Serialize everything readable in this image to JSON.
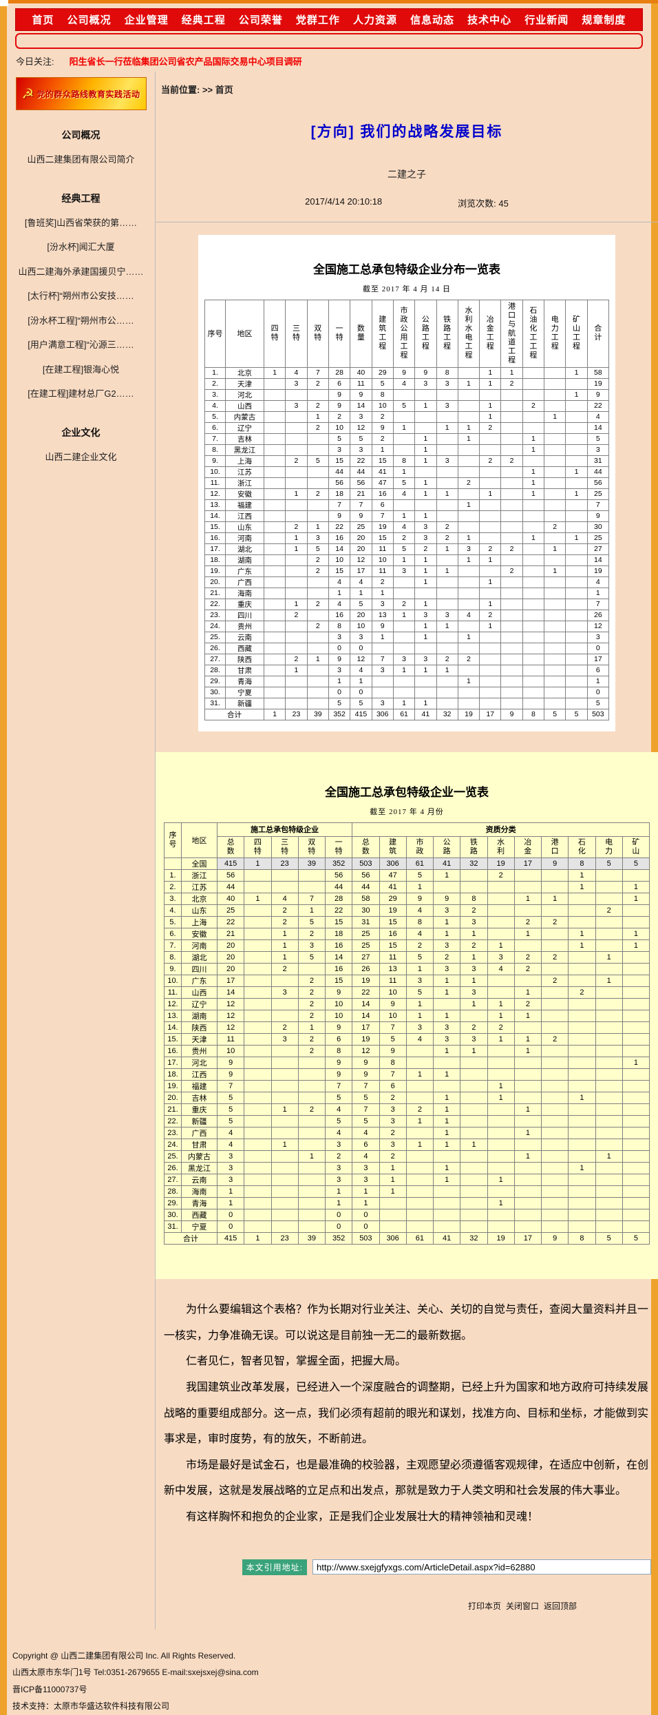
{
  "nav": {
    "items": [
      "首页",
      "公司概况",
      "企业管理",
      "经典工程",
      "公司荣誉",
      "党群工作",
      "人力资源",
      "信息动态",
      "技术中心",
      "行业新闻",
      "规章制度"
    ]
  },
  "focus": {
    "label": "今日关注:",
    "text": "阳生省长一行莅临集团公司省农产品国际交易中心项目调研"
  },
  "breadcrumb": {
    "text": "当前位置: >> 首页"
  },
  "sidebar": {
    "banner_text": "党的群众路线教育实践活动",
    "sections": [
      {
        "title": "公司概况",
        "items": [
          "山西二建集团有限公司简介"
        ]
      },
      {
        "title": "经典工程",
        "items": [
          "[鲁班奖]山西省荣获的第……",
          "[汾水杯]闻汇大厦",
          "山西二建海外承建国援贝宁……",
          "[太行杯]“朔州市公安技……",
          "[汾水杯工程]“朔州市公……",
          "[用户满意工程]“沁源三……",
          "[在建工程]银海心悦",
          "[在建工程]建材总厂G2……"
        ]
      },
      {
        "title": "企业文化",
        "items": [
          "山西二建企业文化"
        ]
      }
    ]
  },
  "article": {
    "title": "[方向] 我们的战略发展目标",
    "author": "二建之子",
    "datetime": "2017/4/14 20:10:18",
    "views_label": "浏览次数:",
    "views": "45"
  },
  "table1": {
    "title": "全国施工总承包特级企业分布一览表",
    "subtitle": "截至 2017 年 4 月 14 日",
    "columns": [
      "序号",
      "地区",
      "四特",
      "三特",
      "双特",
      "一特",
      "数量",
      "建筑工程",
      "市政公用工程",
      "公路工程",
      "铁路工程",
      "水利水电工程",
      "冶金工程",
      "港口与航道工程",
      "石油化工工程",
      "电力工程",
      "矿山工程",
      "合计"
    ],
    "rows": [
      [
        "1.",
        "北京",
        "1",
        "4",
        "7",
        "28",
        "40",
        "29",
        "9",
        "9",
        "8",
        "",
        "1",
        "1",
        "",
        "",
        "1",
        "58"
      ],
      [
        "2.",
        "天津",
        "",
        "3",
        "2",
        "6",
        "11",
        "5",
        "4",
        "3",
        "3",
        "1",
        "1",
        "2",
        "",
        "",
        "",
        "19"
      ],
      [
        "3.",
        "河北",
        "",
        "",
        "",
        "9",
        "9",
        "8",
        "",
        "",
        "",
        "",
        "",
        "",
        "",
        "",
        "1",
        "9"
      ],
      [
        "4.",
        "山西",
        "",
        "3",
        "2",
        "9",
        "14",
        "10",
        "5",
        "1",
        "3",
        "",
        "1",
        "",
        "2",
        "",
        "",
        "22"
      ],
      [
        "5.",
        "内蒙古",
        "",
        "",
        "1",
        "2",
        "3",
        "2",
        "",
        "",
        "",
        "",
        "1",
        "",
        "",
        "1",
        "",
        "4"
      ],
      [
        "6.",
        "辽宁",
        "",
        "",
        "2",
        "10",
        "12",
        "9",
        "1",
        "",
        "1",
        "1",
        "2",
        "",
        "",
        "",
        "",
        "14"
      ],
      [
        "7.",
        "吉林",
        "",
        "",
        "",
        "5",
        "5",
        "2",
        "",
        "1",
        "",
        "1",
        "",
        "",
        "1",
        "",
        "",
        "5"
      ],
      [
        "8.",
        "黑龙江",
        "",
        "",
        "",
        "3",
        "3",
        "1",
        "",
        "1",
        "",
        "",
        "",
        "",
        "1",
        "",
        "",
        "3"
      ],
      [
        "9.",
        "上海",
        "",
        "2",
        "5",
        "15",
        "22",
        "15",
        "8",
        "1",
        "3",
        "",
        "2",
        "2",
        "",
        "",
        "",
        "31"
      ],
      [
        "10.",
        "江苏",
        "",
        "",
        "",
        "44",
        "44",
        "41",
        "1",
        "",
        "",
        "",
        "",
        "",
        "1",
        "",
        "1",
        "44"
      ],
      [
        "11.",
        "浙江",
        "",
        "",
        "",
        "56",
        "56",
        "47",
        "5",
        "1",
        "",
        "2",
        "",
        "",
        "1",
        "",
        "",
        "56"
      ],
      [
        "12.",
        "安徽",
        "",
        "1",
        "2",
        "18",
        "21",
        "16",
        "4",
        "1",
        "1",
        "",
        "1",
        "",
        "1",
        "",
        "1",
        "25"
      ],
      [
        "13.",
        "福建",
        "",
        "",
        "",
        "7",
        "7",
        "6",
        "",
        "",
        "",
        "1",
        "",
        "",
        "",
        "",
        "",
        "7"
      ],
      [
        "14.",
        "江西",
        "",
        "",
        "",
        "9",
        "9",
        "7",
        "1",
        "1",
        "",
        "",
        "",
        "",
        "",
        "",
        "",
        "9"
      ],
      [
        "15.",
        "山东",
        "",
        "2",
        "1",
        "22",
        "25",
        "19",
        "4",
        "3",
        "2",
        "",
        "",
        "",
        "",
        "2",
        "",
        "30"
      ],
      [
        "16.",
        "河南",
        "",
        "1",
        "3",
        "16",
        "20",
        "15",
        "2",
        "3",
        "2",
        "1",
        "",
        "",
        "1",
        "",
        "1",
        "25"
      ],
      [
        "17.",
        "湖北",
        "",
        "1",
        "5",
        "14",
        "20",
        "11",
        "5",
        "2",
        "1",
        "3",
        "2",
        "2",
        "",
        "1",
        "",
        "27"
      ],
      [
        "18.",
        "湖南",
        "",
        "",
        "2",
        "10",
        "12",
        "10",
        "1",
        "1",
        "",
        "1",
        "1",
        "",
        "",
        "",
        "",
        "14"
      ],
      [
        "19.",
        "广东",
        "",
        "",
        "2",
        "15",
        "17",
        "11",
        "3",
        "1",
        "1",
        "",
        "",
        "2",
        "",
        "1",
        "",
        "19"
      ],
      [
        "20.",
        "广西",
        "",
        "",
        "",
        "4",
        "4",
        "2",
        "",
        "1",
        "",
        "",
        "1",
        "",
        "",
        "",
        "",
        "4"
      ],
      [
        "21.",
        "海南",
        "",
        "",
        "",
        "1",
        "1",
        "1",
        "",
        "",
        "",
        "",
        "",
        "",
        "",
        "",
        "",
        "1"
      ],
      [
        "22.",
        "重庆",
        "",
        "1",
        "2",
        "4",
        "5",
        "3",
        "2",
        "1",
        "",
        "",
        "1",
        "",
        "",
        "",
        "",
        "7"
      ],
      [
        "23.",
        "四川",
        "",
        "2",
        "",
        "16",
        "20",
        "13",
        "1",
        "3",
        "3",
        "4",
        "2",
        "",
        "",
        "",
        "",
        "26"
      ],
      [
        "24.",
        "贵州",
        "",
        "",
        "2",
        "8",
        "10",
        "9",
        "",
        "1",
        "1",
        "",
        "1",
        "",
        "",
        "",
        "",
        "12"
      ],
      [
        "25.",
        "云南",
        "",
        "",
        "",
        "3",
        "3",
        "1",
        "",
        "1",
        "",
        "1",
        "",
        "",
        "",
        "",
        "",
        "3"
      ],
      [
        "26.",
        "西藏",
        "",
        "",
        "",
        "0",
        "0",
        "",
        "",
        "",
        "",
        "",
        "",
        "",
        "",
        "",
        "",
        "0"
      ],
      [
        "27.",
        "陕西",
        "",
        "2",
        "1",
        "9",
        "12",
        "7",
        "3",
        "3",
        "2",
        "2",
        "",
        "",
        "",
        "",
        "",
        "17"
      ],
      [
        "28.",
        "甘肃",
        "",
        "1",
        "",
        "3",
        "4",
        "3",
        "1",
        "1",
        "1",
        "",
        "",
        "",
        "",
        "",
        "",
        "6"
      ],
      [
        "29.",
        "青海",
        "",
        "",
        "",
        "1",
        "1",
        "",
        "",
        "",
        "",
        "1",
        "",
        "",
        "",
        "",
        "",
        "1"
      ],
      [
        "30.",
        "宁夏",
        "",
        "",
        "",
        "0",
        "0",
        "",
        "",
        "",
        "",
        "",
        "",
        "",
        "",
        "",
        "",
        "0"
      ],
      [
        "31.",
        "新疆",
        "",
        "",
        "",
        "5",
        "5",
        "3",
        "1",
        "1",
        "",
        "",
        "",
        "",
        "",
        "",
        "",
        "5"
      ]
    ],
    "total_label": "合计",
    "total": [
      "1",
      "23",
      "39",
      "352",
      "415",
      "306",
      "61",
      "41",
      "32",
      "19",
      "17",
      "9",
      "8",
      "5",
      "5",
      "503"
    ]
  },
  "table2": {
    "title": "全国施工总承包特级企业一览表",
    "subtitle": "截至 2017 年 4 月份",
    "corner": [
      "序号",
      "地区"
    ],
    "groups": [
      {
        "label": "施工总承包特级企业",
        "cols": [
          "总数",
          "四特",
          "三特",
          "双特",
          "一特"
        ]
      },
      {
        "label": "资质分类",
        "cols": [
          "总数",
          "建筑",
          "市政",
          "公路",
          "铁路",
          "水利",
          "冶金",
          "港口",
          "石化",
          "电力",
          "矿山"
        ]
      }
    ],
    "national_row": [
      "",
      "全国",
      "415",
      "1",
      "23",
      "39",
      "352",
      "503",
      "306",
      "61",
      "41",
      "32",
      "19",
      "17",
      "9",
      "8",
      "5",
      "5"
    ],
    "rows": [
      [
        "1.",
        "浙江",
        "56",
        "",
        "",
        "",
        "56",
        "56",
        "47",
        "5",
        "1",
        "",
        "2",
        "",
        "",
        "1",
        "",
        ""
      ],
      [
        "2.",
        "江苏",
        "44",
        "",
        "",
        "",
        "44",
        "44",
        "41",
        "1",
        "",
        "",
        "",
        "",
        "",
        "1",
        "",
        "1"
      ],
      [
        "3.",
        "北京",
        "40",
        "1",
        "4",
        "7",
        "28",
        "58",
        "29",
        "9",
        "9",
        "8",
        "",
        "1",
        "1",
        "",
        "",
        "1"
      ],
      [
        "4.",
        "山东",
        "25",
        "",
        "2",
        "1",
        "22",
        "30",
        "19",
        "4",
        "3",
        "2",
        "",
        "",
        "",
        "",
        "2",
        ""
      ],
      [
        "5.",
        "上海",
        "22",
        "",
        "2",
        "5",
        "15",
        "31",
        "15",
        "8",
        "1",
        "3",
        "",
        "2",
        "2",
        "",
        "",
        ""
      ],
      [
        "6.",
        "安徽",
        "21",
        "",
        "1",
        "2",
        "18",
        "25",
        "16",
        "4",
        "1",
        "1",
        "",
        "1",
        "",
        "1",
        "",
        "1"
      ],
      [
        "7.",
        "河南",
        "20",
        "",
        "1",
        "3",
        "16",
        "25",
        "15",
        "2",
        "3",
        "2",
        "1",
        "",
        "",
        "1",
        "",
        "1"
      ],
      [
        "8.",
        "湖北",
        "20",
        "",
        "1",
        "5",
        "14",
        "27",
        "11",
        "5",
        "2",
        "1",
        "3",
        "2",
        "2",
        "",
        "1",
        ""
      ],
      [
        "9.",
        "四川",
        "20",
        "",
        "2",
        "",
        "16",
        "26",
        "13",
        "1",
        "3",
        "3",
        "4",
        "2",
        "",
        "",
        "",
        ""
      ],
      [
        "10.",
        "广东",
        "17",
        "",
        "",
        "2",
        "15",
        "19",
        "11",
        "3",
        "1",
        "1",
        "",
        "",
        "2",
        "",
        "1",
        ""
      ],
      [
        "11.",
        "山西",
        "14",
        "",
        "3",
        "2",
        "9",
        "22",
        "10",
        "5",
        "1",
        "3",
        "",
        "1",
        "",
        "2",
        "",
        ""
      ],
      [
        "12.",
        "辽宁",
        "12",
        "",
        "",
        "2",
        "10",
        "14",
        "9",
        "1",
        "",
        "1",
        "1",
        "2",
        "",
        "",
        "",
        ""
      ],
      [
        "13.",
        "湖南",
        "12",
        "",
        "",
        "2",
        "10",
        "14",
        "10",
        "1",
        "1",
        "",
        "1",
        "1",
        "",
        "",
        "",
        ""
      ],
      [
        "14.",
        "陕西",
        "12",
        "",
        "2",
        "1",
        "9",
        "17",
        "7",
        "3",
        "3",
        "2",
        "2",
        "",
        "",
        "",
        "",
        ""
      ],
      [
        "15.",
        "天津",
        "11",
        "",
        "3",
        "2",
        "6",
        "19",
        "5",
        "4",
        "3",
        "3",
        "1",
        "1",
        "2",
        "",
        "",
        ""
      ],
      [
        "16.",
        "贵州",
        "10",
        "",
        "",
        "2",
        "8",
        "12",
        "9",
        "",
        "1",
        "1",
        "",
        "1",
        "",
        "",
        "",
        ""
      ],
      [
        "17.",
        "河北",
        "9",
        "",
        "",
        "",
        "9",
        "9",
        "8",
        "",
        "",
        "",
        "",
        "",
        "",
        "",
        "",
        "1"
      ],
      [
        "18.",
        "江西",
        "9",
        "",
        "",
        "",
        "9",
        "9",
        "7",
        "1",
        "1",
        "",
        "",
        "",
        "",
        "",
        "",
        ""
      ],
      [
        "19.",
        "福建",
        "7",
        "",
        "",
        "",
        "7",
        "7",
        "6",
        "",
        "",
        "",
        "1",
        "",
        "",
        "",
        "",
        ""
      ],
      [
        "20.",
        "吉林",
        "5",
        "",
        "",
        "",
        "5",
        "5",
        "2",
        "",
        "1",
        "",
        "1",
        "",
        "",
        "1",
        "",
        ""
      ],
      [
        "21.",
        "重庆",
        "5",
        "",
        "1",
        "2",
        "4",
        "7",
        "3",
        "2",
        "1",
        "",
        "",
        "1",
        "",
        "",
        "",
        ""
      ],
      [
        "22.",
        "新疆",
        "5",
        "",
        "",
        "",
        "5",
        "5",
        "3",
        "1",
        "1",
        "",
        "",
        "",
        "",
        "",
        "",
        ""
      ],
      [
        "23.",
        "广西",
        "4",
        "",
        "",
        "",
        "4",
        "4",
        "2",
        "",
        "1",
        "",
        "",
        "1",
        "",
        "",
        "",
        ""
      ],
      [
        "24.",
        "甘肃",
        "4",
        "",
        "1",
        "",
        "3",
        "6",
        "3",
        "1",
        "1",
        "1",
        "",
        "",
        "",
        "",
        "",
        ""
      ],
      [
        "25.",
        "内蒙古",
        "3",
        "",
        "",
        "1",
        "2",
        "4",
        "2",
        "",
        "",
        "",
        "",
        "1",
        "",
        "",
        "1",
        ""
      ],
      [
        "26.",
        "黑龙江",
        "3",
        "",
        "",
        "",
        "3",
        "3",
        "1",
        "",
        "1",
        "",
        "",
        "",
        "",
        "1",
        "",
        ""
      ],
      [
        "27.",
        "云南",
        "3",
        "",
        "",
        "",
        "3",
        "3",
        "1",
        "",
        "1",
        "",
        "1",
        "",
        "",
        "",
        "",
        ""
      ],
      [
        "28.",
        "海南",
        "1",
        "",
        "",
        "",
        "1",
        "1",
        "1",
        "",
        "",
        "",
        "",
        "",
        "",
        "",
        "",
        ""
      ],
      [
        "29.",
        "青海",
        "1",
        "",
        "",
        "",
        "1",
        "1",
        "",
        "",
        "",
        "",
        "1",
        "",
        "",
        "",
        "",
        ""
      ],
      [
        "30.",
        "西藏",
        "0",
        "",
        "",
        "",
        "0",
        "0",
        "",
        "",
        "",
        "",
        "",
        "",
        "",
        "",
        "",
        ""
      ],
      [
        "31.",
        "宁夏",
        "0",
        "",
        "",
        "",
        "0",
        "0",
        "",
        "",
        "",
        "",
        "",
        "",
        "",
        "",
        "",
        ""
      ]
    ],
    "total_label": "合计",
    "total": [
      "415",
      "1",
      "23",
      "39",
      "352",
      "503",
      "306",
      "61",
      "41",
      "32",
      "19",
      "17",
      "9",
      "8",
      "5",
      "5"
    ]
  },
  "paragraphs": [
    "为什么要编辑这个表格？作为长期对行业关注、关心、关切的自觉与责任，查阅大量资料并且一一核实，力争准确无误。可以说这是目前独一无二的最新数据。",
    "仁者见仁，智者见智，掌握全面，把握大局。",
    "我国建筑业改革发展，已经进入一个深度融合的调整期，已经上升为国家和地方政府可持续发展战略的重要组成部分。这一点，我们必须有超前的眼光和谋划，找准方向、目标和坐标，才能做到实事求是，审时度势，有的放矢，不断前进。",
    "市场是最好是试金石，也是最准确的校验器，主观愿望必须遵循客观规律，在适应中创新，在创新中发展，这就是发展战略的立足点和出发点，那就是致力于人类文明和社会发展的伟大事业。",
    "有这样胸怀和抱负的企业家，正是我们企业发展壮大的精神领袖和灵魂！"
  ],
  "citation": {
    "label": "本文引用地址:",
    "url": "http://www.sxejgfyxgs.com/ArticleDetail.aspx?id=62880"
  },
  "actions": [
    "打印本页",
    "关闭窗口",
    "返回顶部"
  ],
  "footer": {
    "lines": [
      "Copyright @ 山西二建集团有限公司 Inc. All Rights Reserved.",
      "山西太原市东华门1号  Tel:0351-2679655  E-mail:sxejsxej@sina.com",
      "晋ICP备11000737号",
      "技术支持：太原市华盛达软件科技有限公司"
    ]
  }
}
